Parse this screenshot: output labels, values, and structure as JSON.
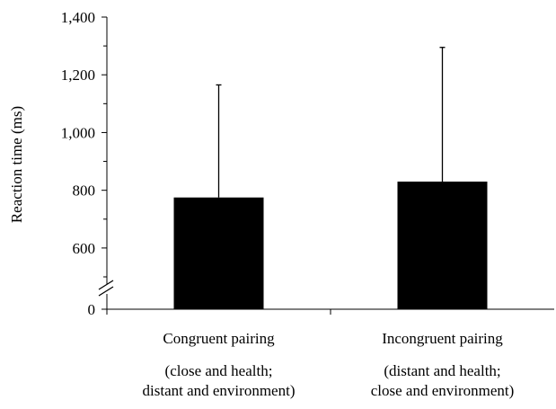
{
  "chart_data": {
    "type": "bar",
    "title": "",
    "xlabel": "",
    "ylabel": "Reaction time (ms)",
    "ylim": [
      0,
      1400
    ],
    "axis_break": {
      "from": 0,
      "to": 500
    },
    "yticks": [
      0,
      600,
      800,
      1000,
      1200,
      1400
    ],
    "ytick_labels": [
      "0",
      "600",
      "800",
      "1,000",
      "1,200",
      "1,400"
    ],
    "minor_yticks": [
      500,
      700,
      900,
      1100,
      1300
    ],
    "categories": [
      "Congruent pairing",
      "Incongruent pairing"
    ],
    "category_sublabels": [
      [
        "(close and health;",
        "distant and environment)"
      ],
      [
        "(distant and health;",
        "close and environment)"
      ]
    ],
    "values": [
      775,
      830
    ],
    "error_upper": [
      1165,
      1295
    ],
    "legend": false,
    "grid": false,
    "colors": {
      "bar": "#000000",
      "axis": "#000000",
      "background": "#ffffff"
    }
  }
}
